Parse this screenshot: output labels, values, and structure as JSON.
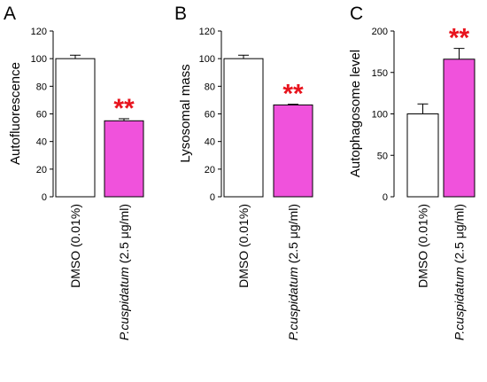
{
  "chart_data": [
    {
      "panel": "A",
      "type": "bar",
      "ylabel": "Autofluorescence",
      "ylim": [
        0,
        120
      ],
      "yticks": [
        0,
        20,
        40,
        60,
        80,
        100,
        120
      ],
      "categories": [
        {
          "main": "DMSO (0.01%)",
          "italic": "",
          "rest": ""
        },
        {
          "main": "",
          "italic": "P.cuspidatum",
          "rest": " (2.5 μg/ml)"
        }
      ],
      "values": [
        100,
        55
      ],
      "errors": [
        2.5,
        1.5
      ],
      "colors": [
        "#ffffff",
        "#f052dc"
      ],
      "significance": [
        "",
        "**"
      ]
    },
    {
      "panel": "B",
      "type": "bar",
      "ylabel": "Lysosomal mass",
      "ylim": [
        0,
        120
      ],
      "yticks": [
        0,
        20,
        40,
        60,
        80,
        100,
        120
      ],
      "categories": [
        {
          "main": "DMSO (0.01%)",
          "italic": "",
          "rest": ""
        },
        {
          "main": "",
          "italic": "P.cuspidatum",
          "rest": " (2.5 μg/ml)"
        }
      ],
      "values": [
        100,
        66.5
      ],
      "errors": [
        2.5,
        0.5
      ],
      "colors": [
        "#ffffff",
        "#f052dc"
      ],
      "significance": [
        "",
        "**"
      ]
    },
    {
      "panel": "C",
      "type": "bar",
      "ylabel": "Autophagosome level",
      "ylim": [
        0,
        200
      ],
      "yticks": [
        0,
        50,
        100,
        150,
        200
      ],
      "categories": [
        {
          "main": "DMSO (0.01%)",
          "italic": "",
          "rest": ""
        },
        {
          "main": "",
          "italic": "P.cuspidatum",
          "rest": " (2.5 μg/ml)"
        }
      ],
      "values": [
        100,
        166
      ],
      "errors": [
        12,
        13
      ],
      "colors": [
        "#ffffff",
        "#f052dc"
      ],
      "significance": [
        "",
        "**"
      ]
    }
  ]
}
